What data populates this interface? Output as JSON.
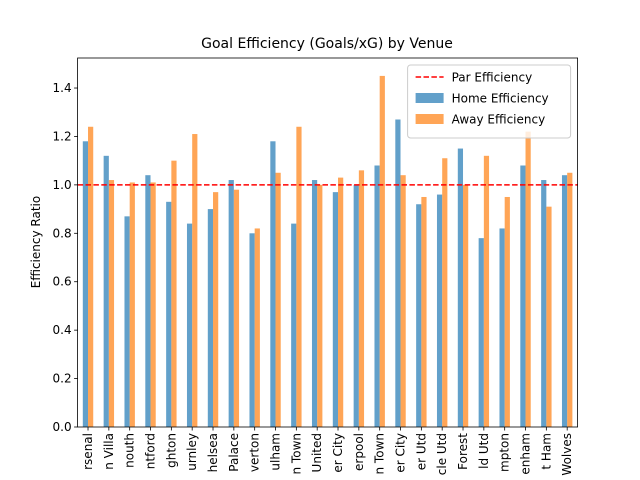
{
  "chart_data": {
    "type": "bar",
    "title": "Goal Efficiency (Goals/xG) by Venue",
    "y_label": "Efficiency Ratio",
    "categories": [
      "rsenal",
      "n Villa",
      "nouth",
      "ntford",
      "ghton",
      "urnley",
      "helsea",
      "Palace",
      "verton",
      "ulham",
      "n Town",
      "United",
      "er City",
      "erpool",
      "n Town",
      "er City",
      "er Utd",
      "cle Utd",
      "Forest",
      "ld Utd",
      "mpton",
      "enham",
      "t Ham",
      "Wolves"
    ],
    "series": [
      {
        "name": "Home Efficiency",
        "color": "#1f77b4",
        "values": [
          1.18,
          1.12,
          0.87,
          1.04,
          0.93,
          0.84,
          0.9,
          1.02,
          0.8,
          1.18,
          0.84,
          1.02,
          0.97,
          1.0,
          1.08,
          1.27,
          0.92,
          0.96,
          1.15,
          0.78,
          0.82,
          1.08,
          1.02,
          1.04
        ]
      },
      {
        "name": "Away Efficiency",
        "color": "#ff7f0e",
        "values": [
          1.24,
          1.02,
          1.01,
          1.01,
          1.1,
          1.21,
          0.97,
          0.98,
          0.82,
          1.05,
          1.24,
          1.0,
          1.03,
          1.06,
          1.45,
          1.04,
          0.95,
          1.11,
          1.0,
          1.12,
          0.95,
          1.22,
          0.91,
          1.05
        ]
      }
    ],
    "reference_line": {
      "name": "Par Efficiency",
      "value": 1.0,
      "color": "#ff0000"
    },
    "ylim": [
      0,
      1.524
    ],
    "yticks": [
      {
        "value": 0,
        "label": "0.0"
      },
      {
        "value": 0.2,
        "label": "0.2"
      },
      {
        "value": 0.4,
        "label": "0.4"
      },
      {
        "value": 0.6,
        "label": "0.6"
      },
      {
        "value": 0.8,
        "label": "0.8"
      },
      {
        "value": 1.0,
        "label": "1.0"
      },
      {
        "value": 1.2,
        "label": "1.2"
      },
      {
        "value": 1.4,
        "label": "1.4"
      }
    ],
    "legend": "upper right"
  }
}
